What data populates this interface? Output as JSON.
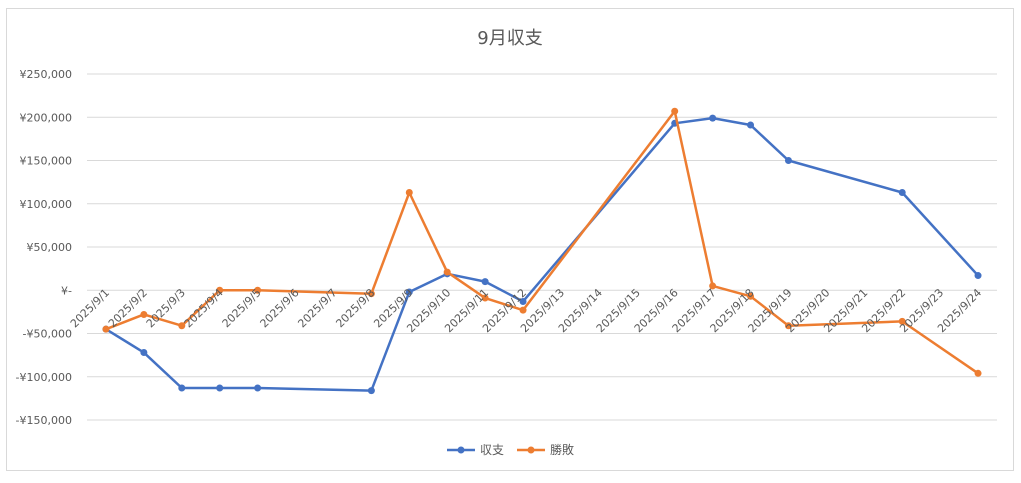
{
  "chart_data": {
    "type": "line",
    "title": "9月収支",
    "xlabel": "",
    "ylabel": "",
    "ylim": [
      -150000,
      250000
    ],
    "y_ticks": [
      {
        "value": 250000,
        "label": "¥250,000"
      },
      {
        "value": 200000,
        "label": "¥200,000"
      },
      {
        "value": 150000,
        "label": "¥150,000"
      },
      {
        "value": 100000,
        "label": "¥100,000"
      },
      {
        "value": 50000,
        "label": "¥50,000"
      },
      {
        "value": 0,
        "label": "¥-"
      },
      {
        "value": -50000,
        "label": "-¥50,000"
      },
      {
        "value": -100000,
        "label": "-¥100,000"
      },
      {
        "value": -150000,
        "label": "-¥150,000"
      }
    ],
    "categories": [
      "2025/9/1",
      "2025/9/2",
      "2025/9/3",
      "2025/9/4",
      "2025/9/5",
      "2025/9/6",
      "2025/9/7",
      "2025/9/8",
      "2025/9/9",
      "2025/9/10",
      "2025/9/11",
      "2025/9/12",
      "2025/9/13",
      "2025/9/14",
      "2025/9/15",
      "2025/9/16",
      "2025/9/17",
      "2025/9/18",
      "2025/9/19",
      "2025/9/20",
      "2025/9/21",
      "2025/9/22",
      "2025/9/23",
      "2025/9/24"
    ],
    "grid": true,
    "legend_position": "bottom",
    "series": [
      {
        "name": "収支",
        "color": "#4472c4",
        "values": [
          -45000,
          -72000,
          -113000,
          -113000,
          -113000,
          null,
          null,
          -116000,
          -2000,
          19000,
          10000,
          -13000,
          null,
          null,
          null,
          193000,
          199000,
          191000,
          150000,
          null,
          null,
          113000,
          null,
          17000
        ]
      },
      {
        "name": "勝敗",
        "color": "#ed7d31",
        "values": [
          -45000,
          -28000,
          -41000,
          0,
          0,
          null,
          null,
          -4000,
          113000,
          21000,
          -9000,
          -23000,
          null,
          null,
          null,
          207000,
          5000,
          -7000,
          -41000,
          null,
          null,
          -36000,
          null,
          -96000
        ]
      }
    ]
  }
}
